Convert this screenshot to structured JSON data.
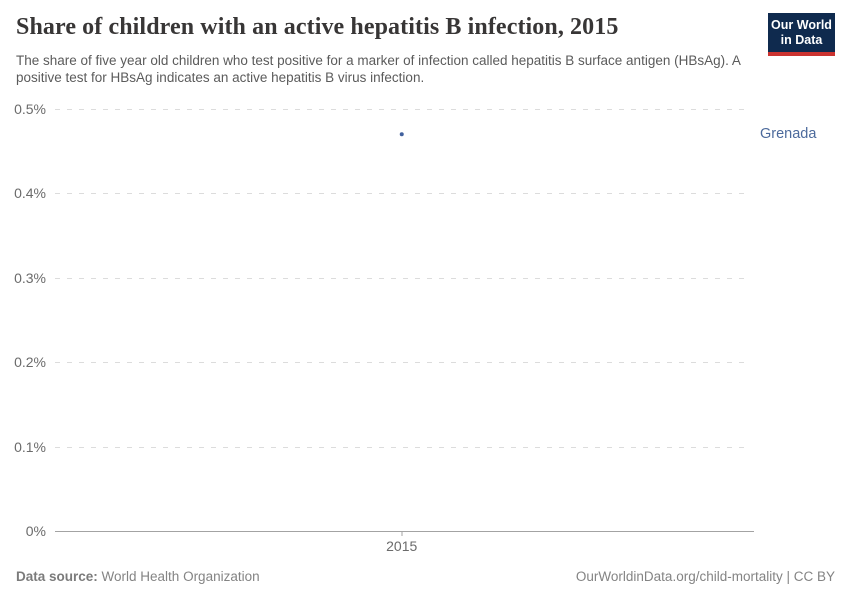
{
  "header": {
    "title": "Share of children with an active hepatitis B infection, 2015",
    "subtitle": "The share of five year old children who test positive for a marker of infection called hepatitis B surface antigen (HBsAg). A positive test for HBsAg indicates an active hepatitis B virus infection.",
    "logo": {
      "line1": "Our World",
      "line2": "in Data",
      "bg_color": "#0f2a4e",
      "bar_color": "#cb3330"
    }
  },
  "chart_data": {
    "type": "scatter",
    "title": "Share of children with an active hepatitis B infection, 2015",
    "x": [
      2015
    ],
    "series": [
      {
        "name": "Grenada",
        "values": [
          0.47
        ]
      }
    ],
    "unit": "%",
    "xlabel": "",
    "ylabel": "",
    "ylim": [
      0,
      0.5
    ],
    "yticks": [
      {
        "value": 0,
        "label": "0%"
      },
      {
        "value": 0.1,
        "label": "0.1%"
      },
      {
        "value": 0.2,
        "label": "0.2%"
      },
      {
        "value": 0.3,
        "label": "0.3%"
      },
      {
        "value": 0.4,
        "label": "0.4%"
      },
      {
        "value": 0.5,
        "label": "0.5%"
      }
    ],
    "xticks": [
      {
        "label": "2015",
        "frac": 0.496
      }
    ],
    "grid": "horizontal-dashed",
    "legend_position": "right-of-point",
    "point": {
      "x_frac": 0.496,
      "value": 0.47,
      "entity": "Grenada"
    },
    "colors": {
      "point": "#41619e",
      "entity_label": "#4c6a9c"
    }
  },
  "footer": {
    "datasource_label": "Data source:",
    "datasource_value": " World Health Organization",
    "credit": "OurWorldinData.org/child-mortality | CC BY"
  }
}
